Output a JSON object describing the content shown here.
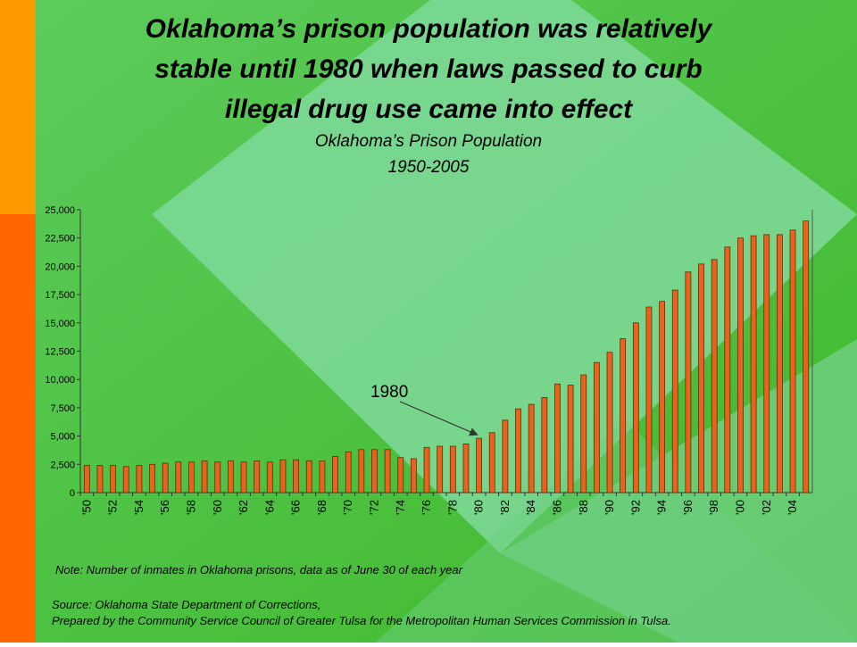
{
  "chart_data": {
    "type": "bar",
    "title": [
      "Oklahoma’s prison population was relatively",
      "stable until 1980 when laws passed to curb",
      "illegal drug use came into effect"
    ],
    "subtitle": [
      "Oklahoma’s Prison Population",
      "1950-2005"
    ],
    "categories": [
      "'50",
      null,
      "'52",
      null,
      "'54",
      null,
      "'56",
      null,
      "'58",
      null,
      "'60",
      null,
      "'62",
      null,
      "'64",
      null,
      "'66",
      null,
      "'68",
      null,
      "'70",
      null,
      "'72",
      null,
      "'74",
      null,
      "'76",
      null,
      "'78",
      null,
      "'80",
      null,
      "'82",
      null,
      "'84",
      null,
      "'86",
      null,
      "'88",
      null,
      "'90",
      null,
      "'92",
      null,
      "'94",
      null,
      "'96",
      null,
      "'98",
      null,
      "'00",
      null,
      "'02",
      null,
      "'04",
      null
    ],
    "values": [
      2400,
      2400,
      2400,
      2300,
      2400,
      2500,
      2600,
      2700,
      2700,
      2800,
      2700,
      2800,
      2700,
      2800,
      2700,
      2900,
      2900,
      2800,
      2800,
      3200,
      3600,
      3800,
      3800,
      3800,
      3100,
      3000,
      4000,
      4100,
      4100,
      4300,
      4800,
      5300,
      6400,
      7400,
      7800,
      8400,
      9600,
      9500,
      10400,
      11500,
      12400,
      13600,
      15000,
      16400,
      16900,
      17900,
      19500,
      20200,
      20600,
      21700,
      22500,
      22700,
      22800,
      22800,
      23200,
      24000
    ],
    "color": "#e8641e",
    "ylim": [
      0,
      25000
    ],
    "yticks": [
      0,
      {
        "value": 2500,
        "label": "2,500"
      },
      {
        "value": 5000,
        "label": "5,000"
      },
      {
        "value": 7500,
        "label": "7,500"
      },
      {
        "value": 10000,
        "label": "10,000"
      },
      {
        "value": 12500,
        "label": "12,500"
      },
      {
        "value": 15000,
        "label": "15,000"
      },
      {
        "value": 17500,
        "label": "17,500"
      },
      {
        "value": 20000,
        "label": "20,000"
      },
      {
        "value": 22500,
        "label": "22,500"
      },
      {
        "value": 25000,
        "label": "25,000"
      }
    ],
    "grid": false,
    "annotation": {
      "text": "1980",
      "index": 30
    },
    "note": "Note: Number of inmates in Oklahoma prisons, data as of June 30 of each year",
    "source": [
      "Source: Oklahoma State Department of Corrections,",
      "Prepared by the Community Service Council of Greater Tulsa for the Metropolitan Human Services Commission in Tulsa."
    ]
  }
}
